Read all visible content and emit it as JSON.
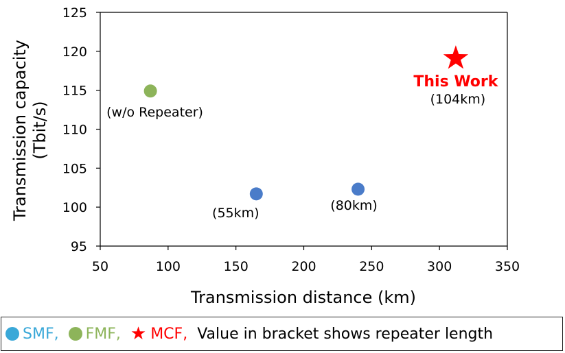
{
  "chart_data": {
    "type": "scatter",
    "xlabel": "Transmission distance (km)",
    "ylabel_lines": [
      "Transmission capacity",
      "(Tbit/s)"
    ],
    "xlim": [
      50,
      350
    ],
    "ylim": [
      95,
      125
    ],
    "x_ticks": [
      "50",
      "100",
      "150",
      "200",
      "250",
      "300",
      "350"
    ],
    "y_ticks": [
      "95",
      "100",
      "105",
      "110",
      "115",
      "120",
      "125"
    ],
    "grid": false,
    "points": [
      {
        "x": 87,
        "y": 114.9,
        "fiber": "FMF",
        "marker": "circle",
        "color": "#8DB45A",
        "label": "(w/o Repeater)",
        "label_pos": "below-right"
      },
      {
        "x": 165,
        "y": 101.7,
        "fiber": "SMF",
        "marker": "circle",
        "color": "#4A7CC9",
        "label": "(55km)",
        "label_pos": "below-left"
      },
      {
        "x": 240,
        "y": 102.3,
        "fiber": "SMF",
        "marker": "circle",
        "color": "#4A7CC9",
        "label": "(80km)",
        "label_pos": "below"
      },
      {
        "x": 312,
        "y": 119.1,
        "fiber": "MCF",
        "marker": "star",
        "color": "#FF0000",
        "label": "This Work",
        "sublabel": "(104km)",
        "label_pos": "below"
      }
    ]
  },
  "legend": {
    "items": [
      {
        "label": "SMF,",
        "marker": "circle",
        "marker_color": "#3AA8D8",
        "text_color": "#3AA8D8"
      },
      {
        "label": "FMF,",
        "marker": "circle",
        "marker_color": "#8DB45A",
        "text_color": "#8DB45A"
      },
      {
        "label": "MCF,",
        "marker": "star",
        "marker_color": "#FF0000",
        "text_color": "#FF0000"
      }
    ],
    "note": "Value in bracket shows repeater length"
  }
}
